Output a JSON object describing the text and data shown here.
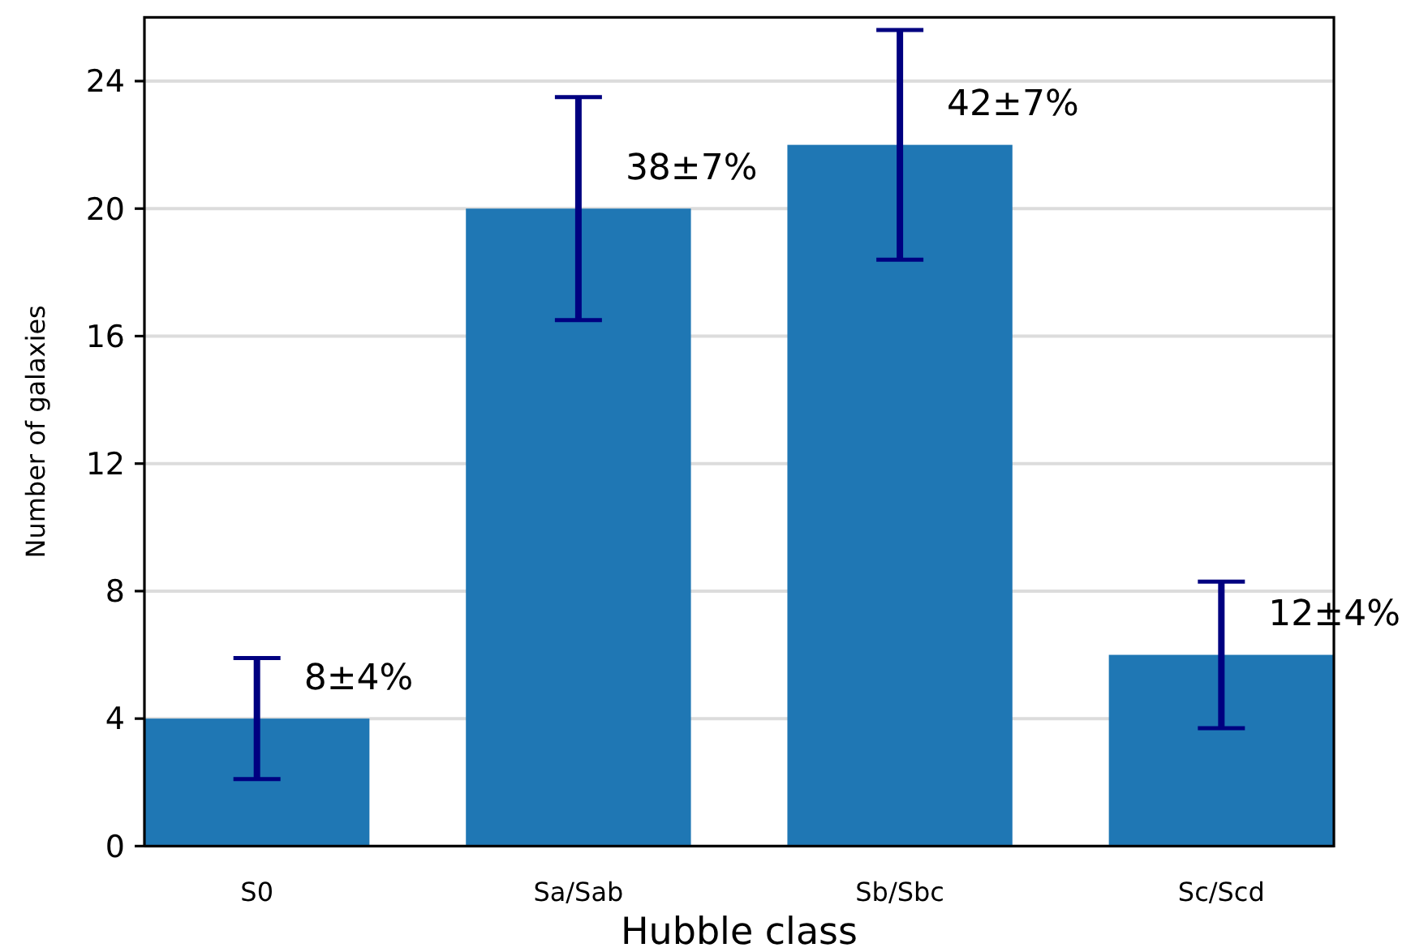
{
  "chart_data": {
    "type": "bar",
    "xlabel": "Hubble class",
    "ylabel": "Number of galaxies",
    "categories": [
      "S0",
      "Sa/Sab",
      "Sb/Sbc",
      "Sc/Scd"
    ],
    "values": [
      4,
      20,
      22,
      6
    ],
    "color": "#1f77b4",
    "errors": [
      1.9,
      3.5,
      3.6,
      2.3
    ],
    "annotations": [
      {
        "text": "8±4%",
        "x": "S0",
        "y": 4
      },
      {
        "text": "38±7%",
        "x": "Sa/Sab",
        "y": 20
      },
      {
        "text": "42±7%",
        "x": "Sb/Sbc",
        "y": 22
      },
      {
        "text": "12±4%",
        "x": "Sc/Scd",
        "y": 6
      }
    ],
    "ylim": [
      0,
      26
    ],
    "yticks": [
      0,
      4,
      8,
      12,
      16,
      20,
      24
    ],
    "grid": "y"
  }
}
